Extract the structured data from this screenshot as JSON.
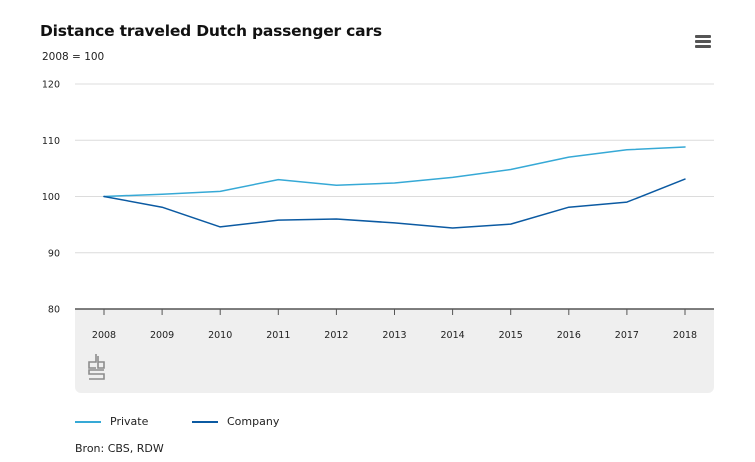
{
  "title": "Distance traveled Dutch passenger cars",
  "subtitle": "2008 = 100",
  "source": "Bron: CBS, RDW",
  "menu_icon": "hamburger-menu-icon",
  "logo_icon": "cbs-logo-icon",
  "colors": {
    "private": "#36a9d6",
    "company": "#0b5aa2",
    "plot_band": "#efefef",
    "grid": "#dcdcdc",
    "axis": "#555555"
  },
  "chart_data": {
    "type": "line",
    "title": "Distance traveled Dutch passenger cars",
    "subtitle": "2008 = 100",
    "categories": [
      "2008",
      "2009",
      "2010",
      "2011",
      "2012",
      "2013",
      "2014",
      "2015",
      "2016",
      "2017",
      "2018"
    ],
    "yticks": [
      "80",
      "90",
      "100",
      "110",
      "120"
    ],
    "ylim": [
      80,
      120
    ],
    "grid": true,
    "legend": "bottom-left",
    "series": [
      {
        "name": "Private",
        "color": "#36a9d6",
        "values": [
          100,
          100.4,
          100.9,
          103.0,
          102.0,
          102.4,
          103.4,
          104.8,
          107.0,
          108.3,
          108.8
        ]
      },
      {
        "name": "Company",
        "color": "#0b5aa2",
        "values": [
          100,
          98.1,
          94.6,
          95.8,
          96.0,
          95.3,
          94.4,
          95.1,
          98.1,
          99.0,
          103.1
        ]
      }
    ]
  }
}
